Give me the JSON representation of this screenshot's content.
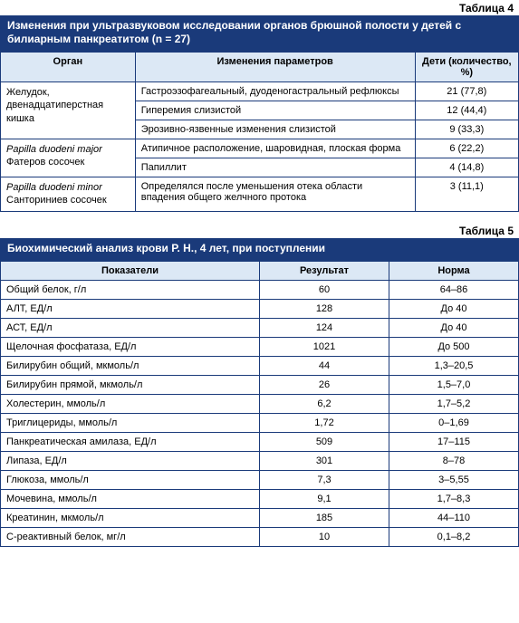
{
  "colors": {
    "header_bg": "#1a3a7a",
    "header_text": "#ffffff",
    "th_bg": "#dce8f5",
    "th_text": "#000000",
    "cell_bg": "#ffffff",
    "cell_text": "#000000",
    "border": "#1a3a7a",
    "page_bg": "#ffffff"
  },
  "table4": {
    "label": "Таблица 4",
    "title": "Изменения при ультразвуковом исследовании органов брюшной полости у детей с билиарным панкреатитом (n = 27)",
    "columns": [
      "Орган",
      "Изменения параметров",
      "Дети (количество, %)"
    ],
    "col_widths_pct": [
      26,
      54,
      20
    ],
    "groups": [
      {
        "organ_line1": "Желудок,",
        "organ_line2": "двенадцатиперстная кишка",
        "organ_italic": false,
        "rows": [
          {
            "change": "Гастроэзофагеальный, дуоденогастральный рефлюксы",
            "count": "21 (77,8)"
          },
          {
            "change": "Гиперемия слизистой",
            "count": "12 (44,4)"
          },
          {
            "change": "Эрозивно-язвенные изменения слизистой",
            "count": "9 (33,3)"
          }
        ]
      },
      {
        "organ_line1": "Papilla duodeni major",
        "organ_line2": "Фатеров сосочек",
        "organ_italic": true,
        "rows": [
          {
            "change": "Атипичное расположение, шаровидная, плоская форма",
            "count": "6 (22,2)"
          },
          {
            "change": "Папиллит",
            "count": "4 (14,8)"
          }
        ]
      },
      {
        "organ_line1": "Papilla duodeni minor",
        "organ_line2": "Санториниев сосочек",
        "organ_italic": true,
        "rows": [
          {
            "change": "Определялся после уменьшения отека области впадения общего желчного протока",
            "count": "3 (11,1)"
          }
        ]
      }
    ]
  },
  "table5": {
    "label": "Таблица 5",
    "title": "Биохимический анализ крови Р. Н., 4 лет, при поступлении",
    "columns": [
      "Показатели",
      "Результат",
      "Норма"
    ],
    "col_widths_pct": [
      50,
      25,
      25
    ],
    "rows": [
      {
        "param": "Общий белок, г/л",
        "result": "60",
        "norm": "64–86"
      },
      {
        "param": "АЛТ, ЕД/л",
        "result": "128",
        "norm": "До 40"
      },
      {
        "param": "АСТ, ЕД/л",
        "result": "124",
        "norm": "До 40"
      },
      {
        "param": "Щелочная фосфатаза, ЕД/л",
        "result": "1021",
        "norm": "До 500"
      },
      {
        "param": "Билирубин общий, мкмоль/л",
        "result": "44",
        "norm": "1,3–20,5"
      },
      {
        "param": "Билирубин прямой, мкмоль/л",
        "result": "26",
        "norm": "1,5–7,0"
      },
      {
        "param": "Холестерин, ммоль/л",
        "result": "6,2",
        "norm": "1,7–5,2"
      },
      {
        "param": "Триглицериды, ммоль/л",
        "result": "1,72",
        "norm": "0–1,69"
      },
      {
        "param": "Панкреатическая амилаза, ЕД/л",
        "result": "509",
        "norm": "17–115"
      },
      {
        "param": "Липаза, ЕД/л",
        "result": "301",
        "norm": "8–78"
      },
      {
        "param": "Глюкоза, ммоль/л",
        "result": "7,3",
        "norm": "3–5,55"
      },
      {
        "param": "Мочевина, ммоль/л",
        "result": "9,1",
        "norm": "1,7–8,3"
      },
      {
        "param": "Креатинин, мкмоль/л",
        "result": "185",
        "norm": "44–110"
      },
      {
        "param": "С-реактивный белок, мг/л",
        "result": "10",
        "norm": "0,1–8,2"
      }
    ]
  }
}
